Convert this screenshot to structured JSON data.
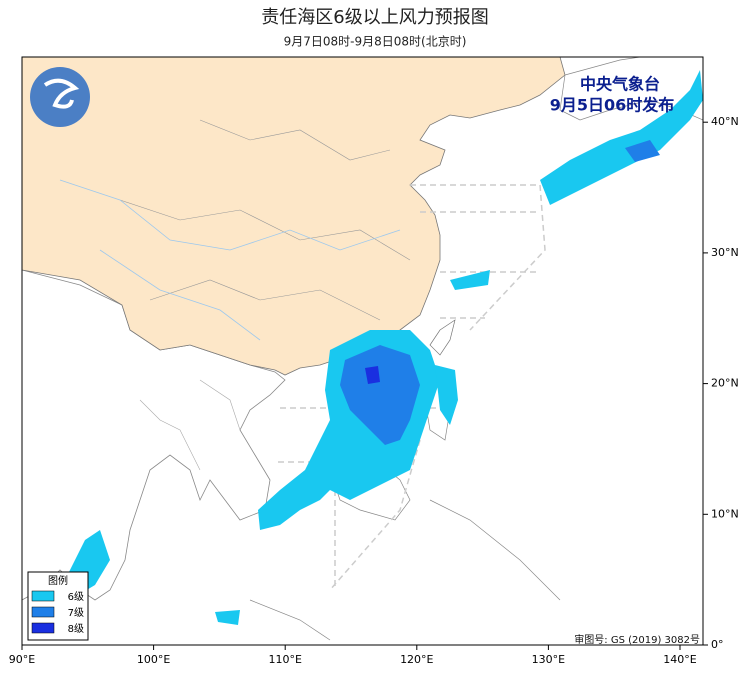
{
  "map": {
    "title": "责任海区6级以上风力预报图",
    "subtitle": "9月7日08时-9月8日08时(北京时)",
    "issuer": "中央气象台",
    "issue_time": "9月5日06时发布",
    "legend": {
      "title": "图例",
      "items": [
        {
          "label": "6级",
          "color": "#19c8f0"
        },
        {
          "label": "7级",
          "color": "#1f7fe8"
        },
        {
          "label": "8级",
          "color": "#1a2fe0"
        }
      ]
    },
    "lon_ticks": [
      "90°E",
      "100°E",
      "110°E",
      "120°E",
      "130°E",
      "140°E"
    ],
    "lat_ticks": [
      "0°",
      "10°N",
      "20°N",
      "30°N",
      "40°N"
    ],
    "review_number": "审图号: GS (2019) 3082号"
  }
}
